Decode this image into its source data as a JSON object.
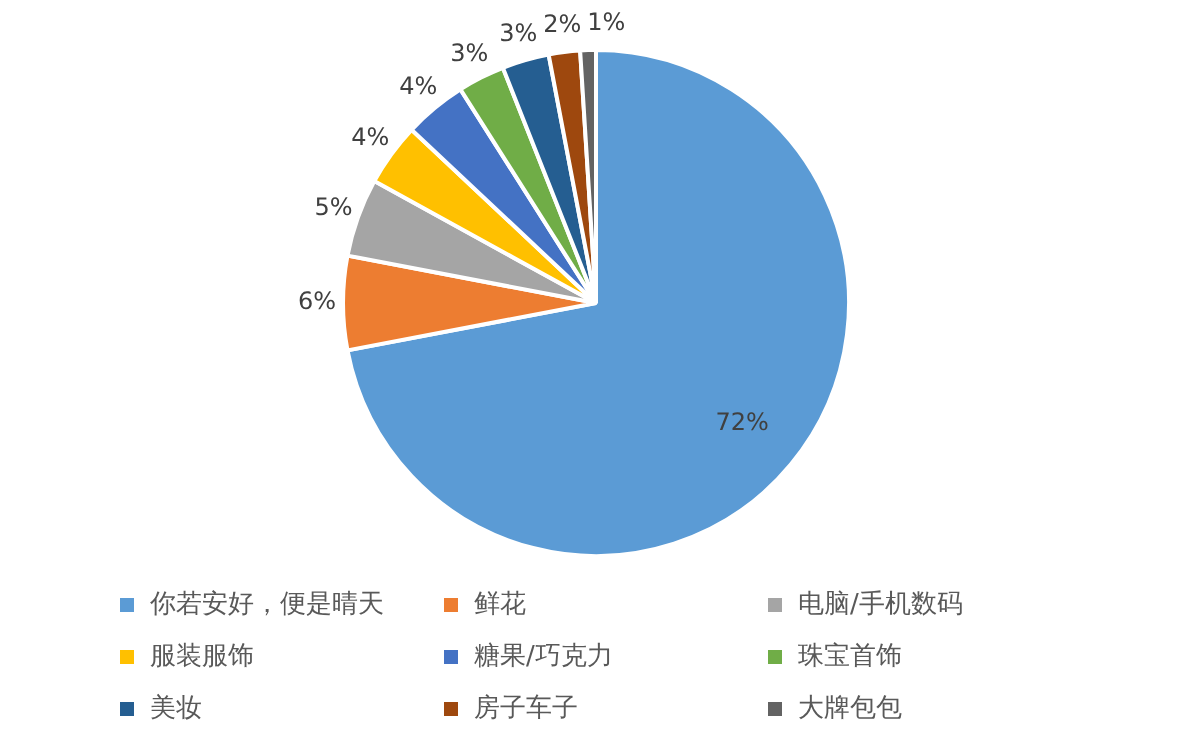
{
  "chart_data": {
    "type": "pie",
    "categories": [
      "你若安好，便是晴天",
      "鲜花",
      "电脑/手机数码",
      "服装服饰",
      "糖果/巧克力",
      "珠宝首饰",
      "美妆",
      "房子车子",
      "大牌包包"
    ],
    "values": [
      72,
      6,
      5,
      4,
      4,
      3,
      3,
      2,
      1
    ],
    "colors": [
      "#5b9bd5",
      "#ed7d31",
      "#a5a5a5",
      "#ffc000",
      "#4472c4",
      "#70ad47",
      "#255e91",
      "#9e480e",
      "#636363"
    ],
    "value_labels": [
      "72%",
      "6%",
      "5%",
      "4%",
      "4%",
      "3%",
      "3%",
      "2%",
      "1%"
    ],
    "legend": "bottom"
  }
}
